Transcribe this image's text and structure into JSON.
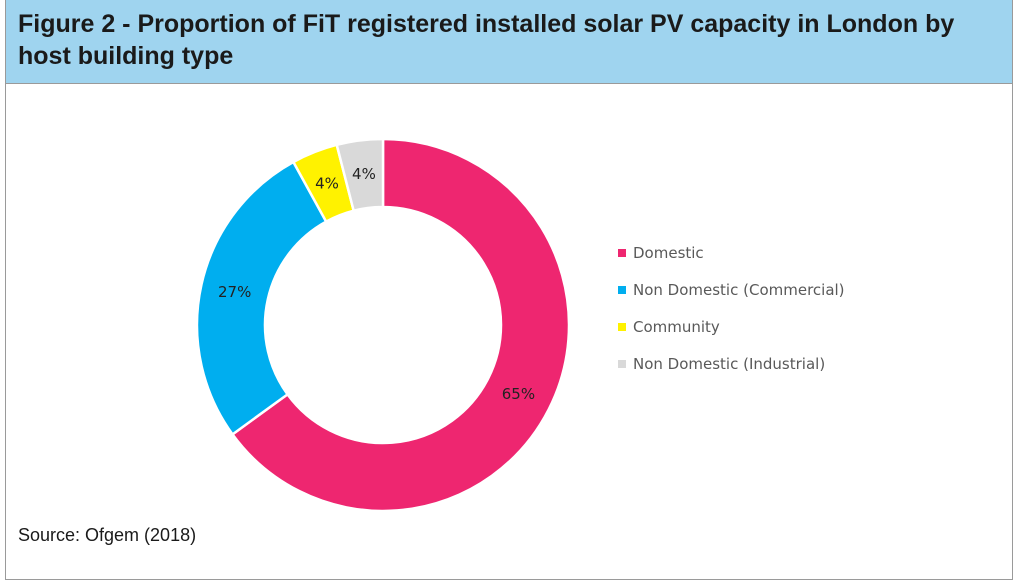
{
  "title": "Figure 2 - Proportion of FiT registered installed solar PV capacity in London by host building type",
  "source": "Source: Ofgem (2018)",
  "chart_data": {
    "type": "pie",
    "variant": "donut",
    "title": "Figure 2 - Proportion of FiT registered installed solar PV capacity in London by host building type",
    "categories": [
      "Domestic",
      "Non Domestic (Commercial)",
      "Community",
      "Non Domestic (Industrial)"
    ],
    "values": [
      65,
      27,
      4,
      4
    ],
    "labels": [
      "65%",
      "27%",
      "4%",
      "4%"
    ],
    "colors": [
      "#ee2670",
      "#00aeef",
      "#fff200",
      "#d9d9d9"
    ],
    "legend_placement": "right"
  }
}
